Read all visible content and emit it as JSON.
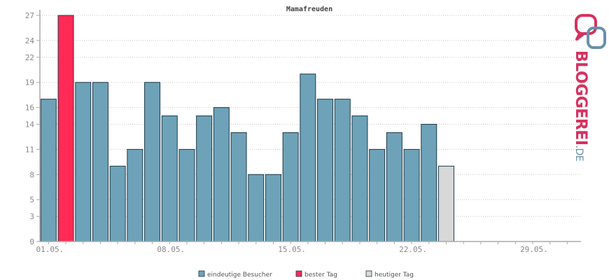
{
  "chart_data": {
    "type": "bar",
    "title": "Mamafreuden",
    "ylim": [
      0,
      27
    ],
    "yticks": [
      0,
      3,
      5,
      8,
      11,
      14,
      16,
      19,
      22,
      24,
      27
    ],
    "xlim_days": [
      1,
      31
    ],
    "xticks": [
      {
        "day": 1,
        "label": "01.05."
      },
      {
        "day": 8,
        "label": "08.05."
      },
      {
        "day": 15,
        "label": "15.05."
      },
      {
        "day": 22,
        "label": "22.05."
      },
      {
        "day": 29,
        "label": "29.05."
      }
    ],
    "series": [
      {
        "name": "eindeutige Besucher",
        "color": "#6da2b8",
        "days": [
          1,
          3,
          4,
          5,
          6,
          7,
          8,
          9,
          10,
          11,
          12,
          13,
          14,
          15,
          16,
          17,
          18,
          19,
          20,
          21,
          22,
          23
        ],
        "values": [
          17,
          19,
          19,
          9,
          11,
          19,
          15,
          11,
          15,
          16,
          13,
          8,
          8,
          13,
          20,
          17,
          17,
          15,
          11,
          13,
          11,
          14
        ]
      },
      {
        "name": "bester Tag",
        "color": "#ff2a55",
        "days": [
          2
        ],
        "values": [
          27
        ]
      },
      {
        "name": "heutiger Tag",
        "color": "#d8d8d8",
        "days": [
          24
        ],
        "values": [
          9
        ]
      }
    ],
    "grid": true,
    "legend": "bottom"
  },
  "logo": {
    "text_main": "BLOGGEREI",
    "text_suffix": ".DE",
    "color_main": "#d6315f",
    "color_suffix": "#6a8fab"
  }
}
